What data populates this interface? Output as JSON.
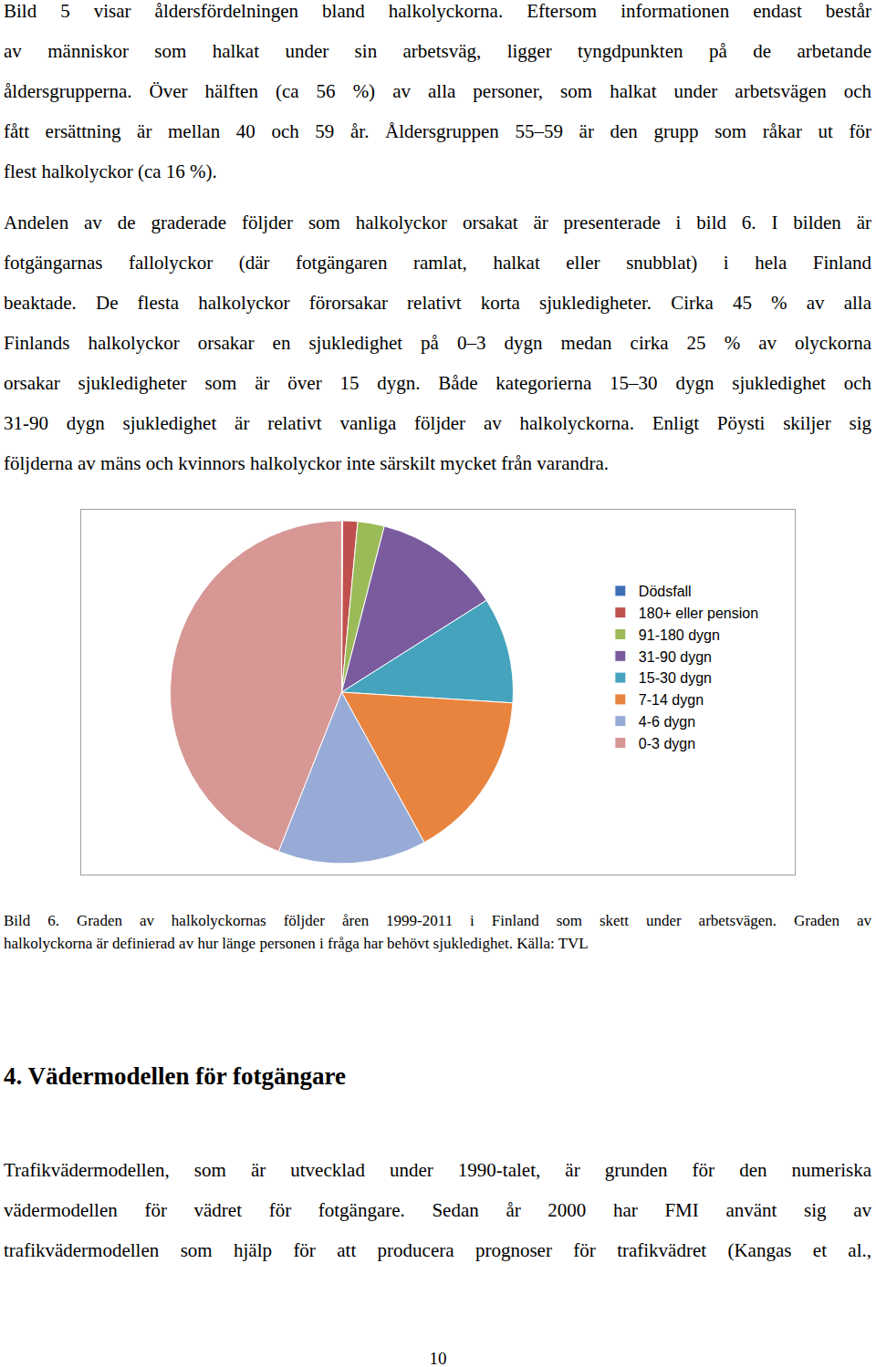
{
  "paragraphs_top": [
    [
      "Bild 5 visar åldersfördelningen bland halkolyckorna. Eftersom informationen endast består",
      "av människor som halkat under sin arbetsväg, ligger tyngdpunkten på de arbetande",
      "åldersgrupperna. Över hälften (ca 56 %) av alla personer, som halkat under arbetsvägen och",
      "fått ersättning är mellan 40 och 59 år. Åldersgruppen 55–59 är den grupp som råkar ut för",
      "flest halkolyckor (ca 16 %)."
    ],
    [
      "Andelen av de graderade följder som halkolyckor orsakat är presenterade i bild 6. I bilden är",
      "fotgängarnas fallolyckor (där fotgängaren ramlat, halkat eller snubblat) i hela Finland",
      "beaktade. De flesta halkolyckor förorsakar relativt korta sjukledigheter. Cirka 45 % av alla",
      "Finlands halkolyckor orsakar en sjukledighet på 0–3 dygn medan cirka 25 % av olyckorna",
      "orsakar sjukledigheter som är över 15 dygn. Både kategorierna 15–30 dygn sjukledighet och",
      "31-90 dygn sjukledighet är relativt vanliga följder av halkolyckorna. Enligt Pöysti skiljer sig",
      "följderna av mäns och kvinnors halkolyckor inte särskilt mycket från varandra."
    ]
  ],
  "chart_data": {
    "type": "pie",
    "categories": [
      "Dödsfall",
      "180+ eller pension",
      "91-180 dygn",
      "31-90 dygn",
      "15-30 dygn",
      "7-14 dygn",
      "4-6 dygn",
      "0-3 dygn"
    ],
    "values": [
      0.1,
      1.4,
      2.5,
      12,
      10,
      16,
      14,
      44
    ],
    "colors": [
      "#3f6eb5",
      "#c0504d",
      "#9bbb59",
      "#7a5c9e",
      "#45a3bd",
      "#e9843f",
      "#97abd6",
      "#d69795"
    ],
    "legend": "right"
  },
  "caption": [
    "Bild 6. Graden av halkolyckornas följder åren 1999-2011 i Finland som skett under arbetsvägen. Graden av",
    "halkolyckorna är definierad av hur länge personen i fråga har behövt sjukledighet. Källa: TVL"
  ],
  "heading": "4. Vädermodellen för fotgängare",
  "paragraph_bottom": [
    "Trafikvädermodellen, som är utvecklad under 1990-talet, är grunden för den numeriska",
    "vädermodellen för vädret för fotgängare. Sedan år 2000 har FMI använt sig av",
    "trafikvädermodellen som hjälp för att producera prognoser för trafikvädret (Kangas et al.,"
  ],
  "page_number": "10"
}
